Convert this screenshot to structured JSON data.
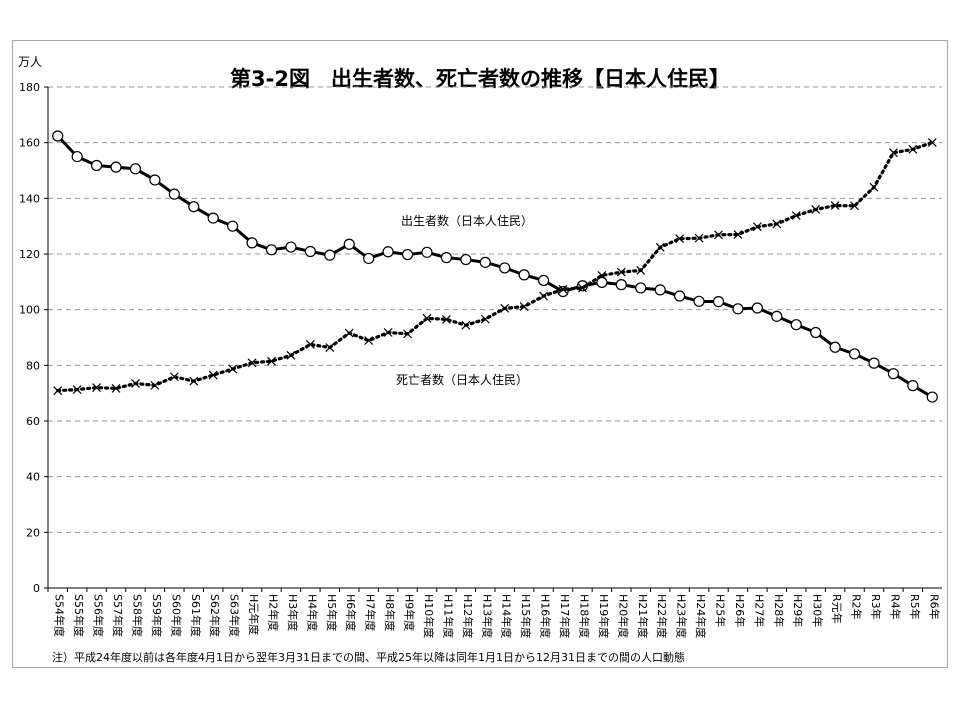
{
  "chart_data": {
    "type": "line",
    "title": "第3-2図　出生者数、死亡者数の推移【日本人住民】",
    "ylabel": "万人",
    "xlabel": "",
    "ylim": [
      0,
      180
    ],
    "yticks": [
      0,
      20,
      40,
      60,
      80,
      100,
      120,
      140,
      160,
      180
    ],
    "grid": true,
    "categories": [
      "S54年度",
      "S55年度",
      "S56年度",
      "S57年度",
      "S58年度",
      "S59年度",
      "S60年度",
      "S61年度",
      "S62年度",
      "S63年度",
      "H元年度",
      "H2年度",
      "H3年度",
      "H4年度",
      "H5年度",
      "H6年度",
      "H7年度",
      "H8年度",
      "H9年度",
      "H10年度",
      "H11年度",
      "H12年度",
      "H13年度",
      "H14年度",
      "H15年度",
      "H16年度",
      "H17年度",
      "H18年度",
      "H19年度",
      "H20年度",
      "H21年度",
      "H22年度",
      "H23年度",
      "H24年度",
      "H25年",
      "H26年",
      "H27年",
      "H28年",
      "H29年",
      "H30年",
      "R元年",
      "R2年",
      "R3年",
      "R4年",
      "R5年",
      "R6年"
    ],
    "series": [
      {
        "name": "出生者数（日本人住民）",
        "marker": "circle",
        "line": "solid",
        "color": "#000000",
        "values": [
          162.4,
          155.0,
          151.8,
          151.2,
          150.6,
          146.6,
          141.5,
          137.0,
          132.9,
          130.0,
          124.0,
          121.5,
          122.5,
          120.9,
          119.6,
          123.5,
          118.4,
          120.8,
          119.8,
          120.6,
          118.7,
          118.0,
          117.0,
          115.0,
          112.5,
          110.5,
          106.5,
          108.6,
          109.8,
          109.0,
          107.8,
          107.1,
          104.9,
          103.0,
          102.9,
          100.3,
          100.6,
          97.6,
          94.6,
          91.8,
          86.5,
          84.1,
          80.8,
          77.0,
          72.7,
          68.6
        ]
      },
      {
        "name": "死亡者数（日本人住民）",
        "marker": "x",
        "line": "dotted",
        "color": "#000000",
        "values": [
          70.9,
          71.3,
          72.0,
          71.7,
          73.5,
          72.8,
          75.9,
          74.3,
          76.5,
          78.7,
          80.9,
          81.5,
          83.6,
          87.5,
          86.4,
          91.6,
          88.9,
          91.8,
          91.3,
          96.9,
          96.5,
          94.4,
          96.6,
          100.5,
          101.1,
          104.9,
          107.3,
          107.8,
          112.3,
          113.5,
          114.1,
          122.4,
          125.5,
          125.7,
          126.9,
          127.0,
          129.8,
          130.8,
          133.8,
          136.0,
          137.4,
          137.3,
          144.0,
          156.4,
          157.6,
          160.1
        ]
      }
    ],
    "annotations": [
      "出生者数（日本人住民）",
      "死亡者数（日本人住民）"
    ],
    "note": "注）平成24年度以前は各年度4月1日から翌年3月31日までの間、平成25年以降は同年1月1日から12月31日までの間の人口動態"
  }
}
